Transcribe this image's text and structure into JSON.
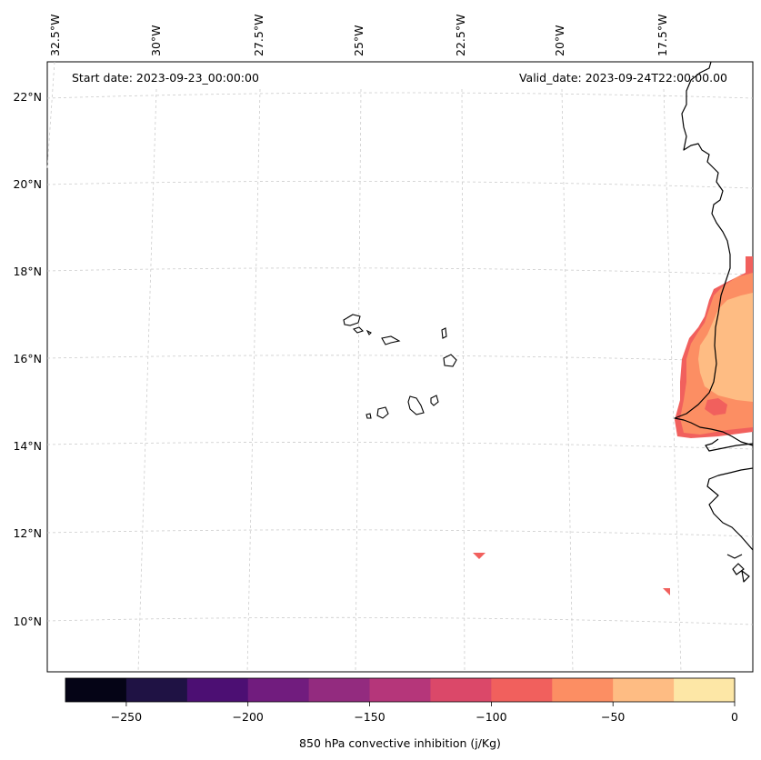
{
  "map": {
    "start_label": "Start date: 2023-09-23_00:00:00",
    "valid_label": "Valid_date: 2023-09-24T22:00:00.00",
    "lon_labels": [
      "32.5°W",
      "30°W",
      "27.5°W",
      "25°W",
      "22.5°W",
      "20°W",
      "17.5°W"
    ],
    "lat_labels": [
      "22°N",
      "20°N",
      "18°N",
      "16°N",
      "14°N",
      "12°N",
      "10°N"
    ]
  },
  "colorbar": {
    "label": "850 hPa convective inhibition (j/Kg)",
    "ticks": [
      "−250",
      "−200",
      "−150",
      "−100",
      "−50",
      "0"
    ],
    "range": [
      -275,
      0
    ],
    "levels": [
      -275,
      -250,
      -225,
      -200,
      -175,
      -150,
      -125,
      -100,
      -75,
      -50,
      -25,
      0
    ],
    "colors": [
      "#050416",
      "#1f1244",
      "#4c0f73",
      "#711c7e",
      "#932b7f",
      "#b5367a",
      "#db4869",
      "#f1605d",
      "#fc8e63",
      "#febc83",
      "#fde7a6"
    ]
  }
}
